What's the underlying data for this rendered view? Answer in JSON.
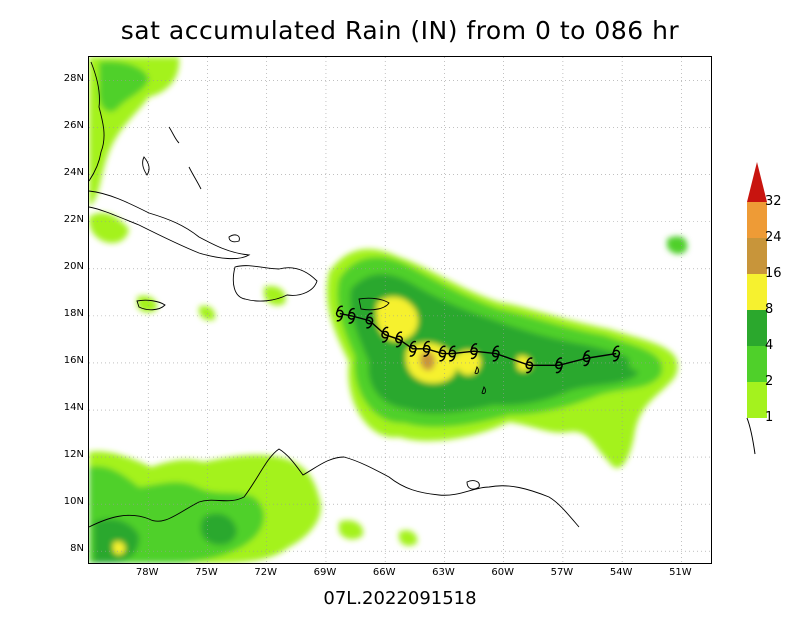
{
  "title": "sat accumulated Rain (IN) from 0 to 086 hr",
  "footer_label": "07L.2022091518",
  "map": {
    "lon_range": [
      -81,
      -49.5
    ],
    "lat_range": [
      7.5,
      29
    ],
    "lon_ticks": [
      {
        "lon": -78,
        "label": "78W"
      },
      {
        "lon": -75,
        "label": "75W"
      },
      {
        "lon": -72,
        "label": "72W"
      },
      {
        "lon": -69,
        "label": "69W"
      },
      {
        "lon": -66,
        "label": "66W"
      },
      {
        "lon": -63,
        "label": "63W"
      },
      {
        "lon": -60,
        "label": "60W"
      },
      {
        "lon": -57,
        "label": "57W"
      },
      {
        "lon": -54,
        "label": "54W"
      },
      {
        "lon": -51,
        "label": "51W"
      }
    ],
    "lat_ticks": [
      {
        "lat": 8,
        "label": "8N"
      },
      {
        "lat": 10,
        "label": "10N"
      },
      {
        "lat": 12,
        "label": "12N"
      },
      {
        "lat": 14,
        "label": "14N"
      },
      {
        "lat": 16,
        "label": "16N"
      },
      {
        "lat": 18,
        "label": "18N"
      },
      {
        "lat": 20,
        "label": "20N"
      },
      {
        "lat": 22,
        "label": "22N"
      },
      {
        "lat": 24,
        "label": "24N"
      },
      {
        "lat": 26,
        "label": "26N"
      },
      {
        "lat": 28,
        "label": "28N"
      }
    ],
    "grid": "dotted",
    "track_symbol": "tropical-storm-icon",
    "track_points": [
      {
        "lon": -68.3,
        "lat": 18.1
      },
      {
        "lon": -67.7,
        "lat": 18.0
      },
      {
        "lon": -66.8,
        "lat": 17.8
      },
      {
        "lon": -66.0,
        "lat": 17.2
      },
      {
        "lon": -65.3,
        "lat": 17.0
      },
      {
        "lon": -64.6,
        "lat": 16.6
      },
      {
        "lon": -63.9,
        "lat": 16.6
      },
      {
        "lon": -63.1,
        "lat": 16.4
      },
      {
        "lon": -62.6,
        "lat": 16.4
      },
      {
        "lon": -61.5,
        "lat": 16.5
      },
      {
        "lon": -60.4,
        "lat": 16.4
      },
      {
        "lon": -58.7,
        "lat": 15.9
      },
      {
        "lon": -57.2,
        "lat": 15.9
      },
      {
        "lon": -55.8,
        "lat": 16.2
      },
      {
        "lon": -54.3,
        "lat": 16.4
      }
    ]
  },
  "colorbar": {
    "levels": [
      "1",
      "2",
      "4",
      "8",
      "16",
      "24",
      "32"
    ],
    "colors": [
      "#a4f21e",
      "#4fd02a",
      "#2ba82d",
      "#f6f12f",
      "#c8953a",
      "#ee9b36",
      "#c8140f"
    ]
  }
}
